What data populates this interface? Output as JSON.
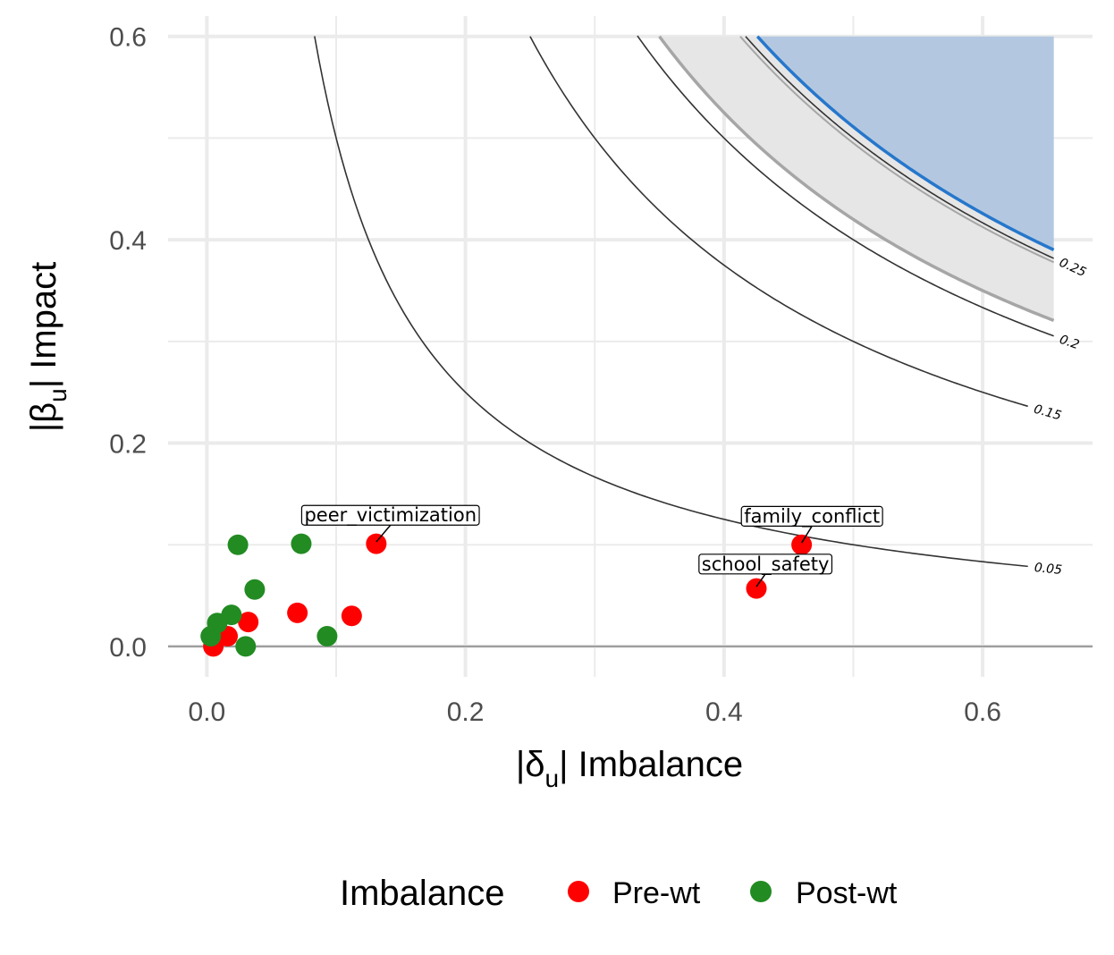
{
  "chart_data": {
    "type": "scatter",
    "xlabel_prefix": "|δ",
    "xlabel_sub": "u",
    "xlabel_suffix": "| Imbalance",
    "ylabel_prefix": "|β",
    "ylabel_sub": "u",
    "ylabel_suffix": "| Impact",
    "xlim": [
      -0.03,
      0.685
    ],
    "ylim": [
      -0.03,
      0.62
    ],
    "x_ticks": [
      0.0,
      0.2,
      0.4,
      0.6
    ],
    "x_tick_labels": [
      "0.0",
      "0.2",
      "0.4",
      "0.6"
    ],
    "y_ticks": [
      0.0,
      0.2,
      0.4,
      0.6
    ],
    "y_tick_labels": [
      "0.0",
      "0.2",
      "0.4",
      "0.6"
    ],
    "x_minor_ticks": [
      0.1,
      0.3,
      0.5
    ],
    "y_minor_ticks": [
      0.1,
      0.3,
      0.5
    ],
    "grid": true,
    "contours": [
      {
        "level": 0.05,
        "label": "0.05",
        "x_start": 0.0833,
        "x_end": 0.635,
        "color": "#333333"
      },
      {
        "level": 0.15,
        "label": "0.15",
        "x_start": 0.25,
        "x_end": 0.635,
        "color": "#333333"
      },
      {
        "level": 0.2,
        "label": "0.2",
        "x_start": 0.333,
        "x_end": 0.655,
        "color": "#333333"
      },
      {
        "level": 0.25,
        "label": "0.25",
        "x_start": 0.4167,
        "x_end": 0.655,
        "color": "#333333"
      }
    ],
    "grey_band": {
      "k_low": 0.21,
      "k_high": 0.2475,
      "x_end": 0.655,
      "fill": "#e6e6e6",
      "line_color": "#a6a6a6"
    },
    "blue_region": {
      "k": 0.2555,
      "x_end": 0.655,
      "fill": "#b3c8e0",
      "line_color": "#2677cc"
    },
    "series": [
      {
        "name": "Pre-wt",
        "color": "#ff0000",
        "points": [
          [
            0.005,
            0.0
          ],
          [
            0.016,
            0.01
          ],
          [
            0.032,
            0.024
          ],
          [
            0.07,
            0.033
          ],
          [
            0.112,
            0.03
          ],
          [
            0.131,
            0.101
          ],
          [
            0.425,
            0.057
          ],
          [
            0.46,
            0.1
          ]
        ]
      },
      {
        "name": "Post-wt",
        "color": "#228b22",
        "points": [
          [
            0.003,
            0.01
          ],
          [
            0.008,
            0.023
          ],
          [
            0.019,
            0.031
          ],
          [
            0.024,
            0.1
          ],
          [
            0.03,
            0.0
          ],
          [
            0.037,
            0.056
          ],
          [
            0.073,
            0.101
          ],
          [
            0.093,
            0.01
          ]
        ]
      }
    ],
    "annotations": [
      {
        "text": "peer_victimization",
        "point": [
          0.131,
          0.101
        ],
        "label_at": [
          0.142,
          0.129
        ]
      },
      {
        "text": "family_conflict",
        "point": [
          0.46,
          0.1
        ],
        "label_at": [
          0.468,
          0.128
        ]
      },
      {
        "text": "school_safety",
        "point": [
          0.425,
          0.057
        ],
        "label_at": [
          0.432,
          0.081
        ]
      }
    ],
    "legend": {
      "title": "Imbalance",
      "position": "bottom"
    }
  }
}
